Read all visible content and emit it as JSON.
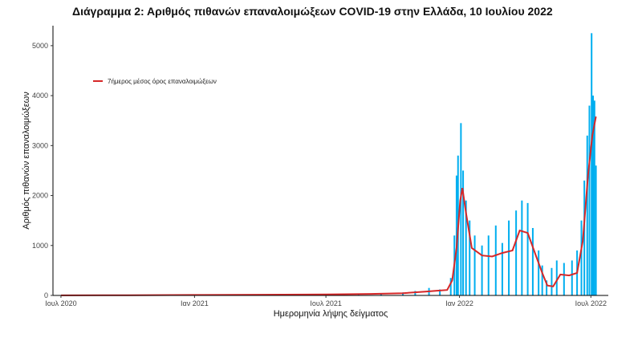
{
  "title": "Διάγραμμα 2: Αριθμός πιθανών επαναλοιμώξεων COVID-19 στην Ελλάδα, 10 Ιουλίου 2022",
  "colors": {
    "bars": "#00AEEF",
    "line": "#D62728",
    "axis": "#000000"
  },
  "chart_data": {
    "type": "bar",
    "title": "Διάγραμμα 2: Αριθμός πιθανών επαναλοιμώξεων COVID-19 στην Ελλάδα, 10 Ιουλίου 2022",
    "xlabel": "Ημερομηνία λήψης δείγματος",
    "ylabel": "Αριθμός πιθανών επαναλοιμώξεων",
    "ylim": [
      0,
      5400
    ],
    "xlim": [
      "2020-06-20",
      "2022-07-25"
    ],
    "grid": false,
    "legend_placement": "top-left",
    "x_ticks": [
      {
        "date": "2020-07-01",
        "label": "Ιουλ 2020"
      },
      {
        "date": "2021-01-01",
        "label": "Ιαν 2021"
      },
      {
        "date": "2021-07-01",
        "label": "Ιουλ 2021"
      },
      {
        "date": "2022-01-01",
        "label": "Ιαν 2022"
      },
      {
        "date": "2022-07-01",
        "label": "Ιουλ 2022"
      }
    ],
    "y_ticks": [
      0,
      1000,
      2000,
      3000,
      4000,
      5000
    ],
    "series": [
      {
        "kind": "bar",
        "color": "#00AEEF",
        "points": [
          [
            "2020-07-01",
            5
          ],
          [
            "2020-09-01",
            8
          ],
          [
            "2020-11-01",
            15
          ],
          [
            "2021-01-01",
            15
          ],
          [
            "2021-03-01",
            20
          ],
          [
            "2021-05-01",
            25
          ],
          [
            "2021-07-01",
            30
          ],
          [
            "2021-08-15",
            40
          ],
          [
            "2021-09-15",
            35
          ],
          [
            "2021-10-15",
            60
          ],
          [
            "2021-11-01",
            90
          ],
          [
            "2021-11-20",
            150
          ],
          [
            "2021-12-05",
            120
          ],
          [
            "2021-12-20",
            350
          ],
          [
            "2021-12-25",
            1200
          ],
          [
            "2021-12-28",
            2400
          ],
          [
            "2021-12-30",
            2800
          ],
          [
            "2022-01-03",
            3450
          ],
          [
            "2022-01-06",
            2500
          ],
          [
            "2022-01-10",
            1900
          ],
          [
            "2022-01-15",
            1500
          ],
          [
            "2022-01-22",
            1200
          ],
          [
            "2022-02-01",
            1000
          ],
          [
            "2022-02-10",
            1200
          ],
          [
            "2022-02-20",
            1400
          ],
          [
            "2022-03-01",
            1050
          ],
          [
            "2022-03-10",
            1500
          ],
          [
            "2022-03-20",
            1700
          ],
          [
            "2022-03-28",
            1900
          ],
          [
            "2022-04-05",
            1850
          ],
          [
            "2022-04-12",
            1350
          ],
          [
            "2022-04-20",
            900
          ],
          [
            "2022-04-25",
            600
          ],
          [
            "2022-05-01",
            300
          ],
          [
            "2022-05-08",
            550
          ],
          [
            "2022-05-15",
            700
          ],
          [
            "2022-05-25",
            650
          ],
          [
            "2022-06-05",
            700
          ],
          [
            "2022-06-12",
            900
          ],
          [
            "2022-06-18",
            1500
          ],
          [
            "2022-06-22",
            2300
          ],
          [
            "2022-06-26",
            3200
          ],
          [
            "2022-06-29",
            3800
          ],
          [
            "2022-07-02",
            5250
          ],
          [
            "2022-07-04",
            4000
          ],
          [
            "2022-07-06",
            3900
          ],
          [
            "2022-07-08",
            2600
          ]
        ]
      },
      {
        "kind": "line",
        "name": "7ήμερος μέσος όρος επαναλοιμώξεων",
        "color": "#D62728",
        "points": [
          [
            "2020-07-01",
            2
          ],
          [
            "2020-10-01",
            5
          ],
          [
            "2021-01-01",
            10
          ],
          [
            "2021-04-01",
            15
          ],
          [
            "2021-07-01",
            20
          ],
          [
            "2021-09-01",
            30
          ],
          [
            "2021-10-15",
            45
          ],
          [
            "2021-11-15",
            75
          ],
          [
            "2021-12-01",
            95
          ],
          [
            "2021-12-15",
            110
          ],
          [
            "2021-12-22",
            300
          ],
          [
            "2021-12-28",
            950
          ],
          [
            "2022-01-02",
            1900
          ],
          [
            "2022-01-05",
            2150
          ],
          [
            "2022-01-10",
            1650
          ],
          [
            "2022-01-18",
            950
          ],
          [
            "2022-02-01",
            800
          ],
          [
            "2022-02-15",
            780
          ],
          [
            "2022-03-01",
            850
          ],
          [
            "2022-03-15",
            900
          ],
          [
            "2022-03-25",
            1300
          ],
          [
            "2022-04-05",
            1250
          ],
          [
            "2022-04-15",
            850
          ],
          [
            "2022-04-25",
            450
          ],
          [
            "2022-05-02",
            200
          ],
          [
            "2022-05-10",
            180
          ],
          [
            "2022-05-20",
            420
          ],
          [
            "2022-06-01",
            400
          ],
          [
            "2022-06-12",
            450
          ],
          [
            "2022-06-20",
            1100
          ],
          [
            "2022-06-27",
            2400
          ],
          [
            "2022-07-03",
            3200
          ],
          [
            "2022-07-08",
            3580
          ]
        ]
      }
    ]
  }
}
